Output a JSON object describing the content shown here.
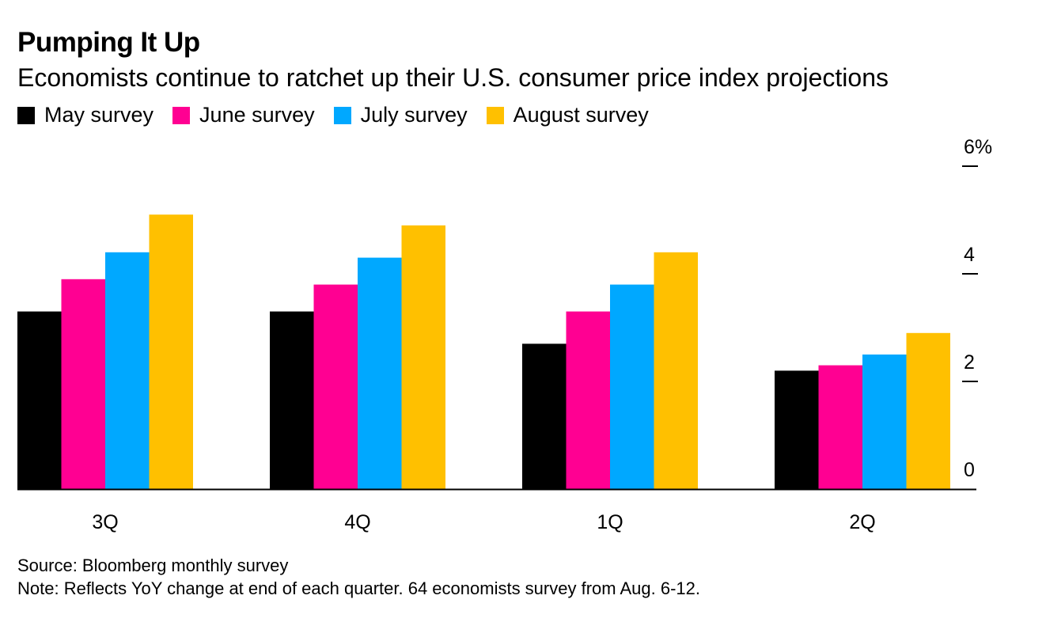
{
  "chart_data": {
    "type": "bar",
    "title": "Pumping It Up",
    "subtitle": "Economists continue to ratchet up their U.S. consumer price index projections",
    "categories": [
      "3Q",
      "4Q",
      "1Q",
      "2Q"
    ],
    "series": [
      {
        "name": "May survey",
        "color": "#000000",
        "values": [
          3.3,
          3.3,
          2.7,
          2.2
        ]
      },
      {
        "name": "June survey",
        "color": "#ff0092",
        "values": [
          3.9,
          3.8,
          3.3,
          2.3
        ]
      },
      {
        "name": "July survey",
        "color": "#00a8ff",
        "values": [
          4.4,
          4.3,
          3.8,
          2.5
        ]
      },
      {
        "name": "August survey",
        "color": "#ffc000",
        "values": [
          5.1,
          4.9,
          4.4,
          2.9
        ]
      }
    ],
    "y_ticks": [
      {
        "value": 0,
        "label": "0"
      },
      {
        "value": 2,
        "label": "2"
      },
      {
        "value": 4,
        "label": "4"
      },
      {
        "value": 6,
        "label": "6%"
      }
    ],
    "ylim": [
      0,
      6
    ],
    "xlabel": "",
    "ylabel": "",
    "y_axis_position": "right",
    "legend_position": "top-left",
    "grid": false
  },
  "footer": {
    "source": "Source: Bloomberg monthly survey",
    "note": "Note: Reflects YoY change at end of each quarter. 64 economists survey from Aug. 6-12."
  }
}
